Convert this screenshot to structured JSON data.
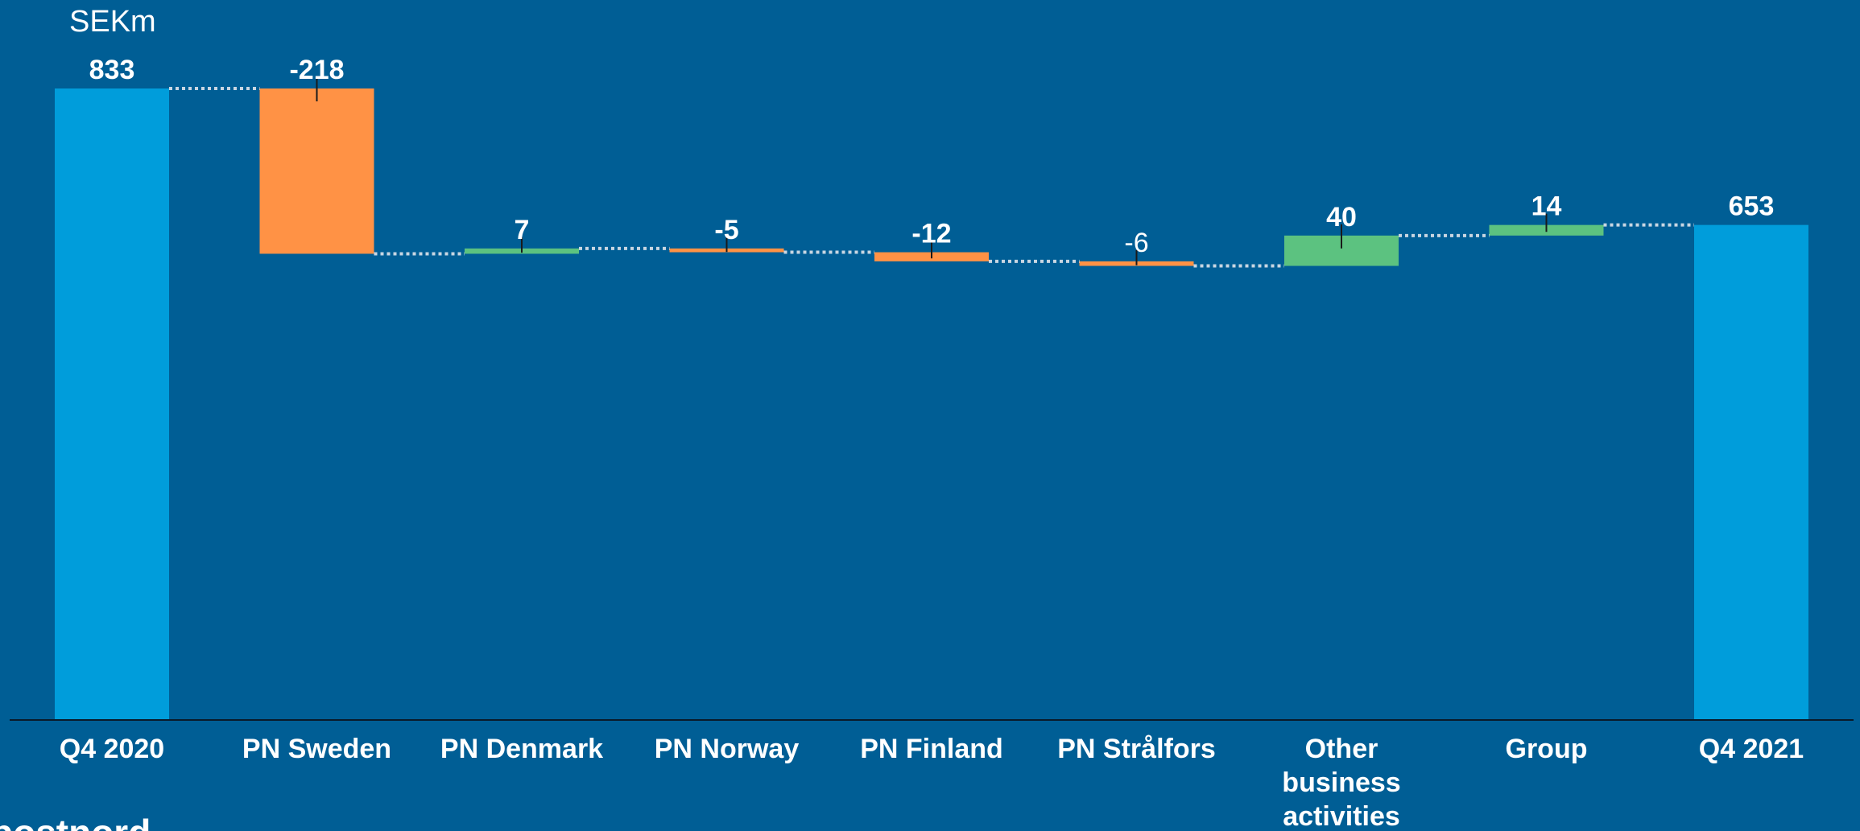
{
  "chart_data": {
    "type": "waterfall",
    "unit": "SEKm",
    "categories": [
      "Q4 2020",
      "PN Sweden",
      "PN Denmark",
      "PN Norway",
      "PN Finland",
      "PN Strålfors",
      "Other business activities",
      "Group",
      "Q4 2021"
    ],
    "category_lines": [
      [
        "Q4 2020"
      ],
      [
        "PN Sweden"
      ],
      [
        "PN Denmark"
      ],
      [
        "PN Norway"
      ],
      [
        "PN Finland"
      ],
      [
        "PN Strålfors"
      ],
      [
        "Other",
        "business",
        "activities"
      ],
      [
        "Group"
      ],
      [
        "Q4 2021"
      ]
    ],
    "values": [
      833,
      -218,
      7,
      -5,
      -12,
      -6,
      40,
      14,
      653
    ],
    "labels": [
      "833",
      "-218",
      "7",
      "-5",
      "-12",
      "-6",
      "40",
      "14",
      "653"
    ],
    "kinds": [
      "total",
      "delta",
      "delta",
      "delta",
      "delta",
      "delta",
      "delta",
      "delta",
      "total"
    ],
    "ylim": [
      0,
      833
    ],
    "grid": false,
    "legend": "none"
  },
  "colors": {
    "background": "#005E95",
    "total": "#009DDB",
    "increase": "#5CC280",
    "decrease": "#FF9245",
    "text": "#FFFFFF",
    "connector": "#C8D6E2",
    "axis": "#0A1A2A"
  },
  "logo": {
    "text": "postnord"
  }
}
